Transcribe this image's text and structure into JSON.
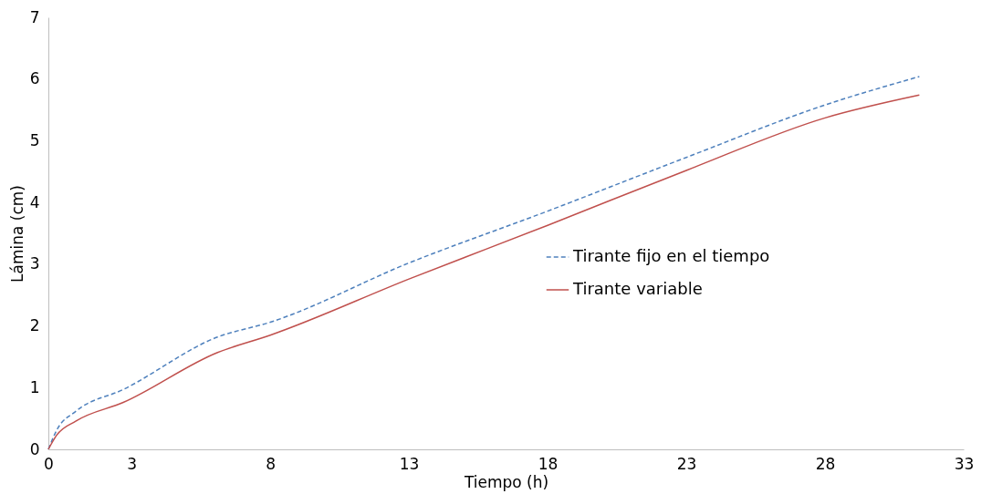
{
  "chart_data": {
    "type": "line",
    "xlabel": "Tiempo  (h)",
    "ylabel": "Lámina  (cm)",
    "xlim": [
      0,
      33
    ],
    "xticks": [
      0,
      3,
      8,
      13,
      18,
      23,
      28,
      33
    ],
    "ylim": [
      0,
      7
    ],
    "yticks": [
      0,
      1,
      2,
      3,
      4,
      5,
      6,
      7
    ],
    "grid": false,
    "legend": "right",
    "marker": "none",
    "series": [
      {
        "name": "Tirante fijo en el tiempo",
        "color": "#4f81bd",
        "line_style": "dashed",
        "x": [
          0,
          0.3,
          1,
          2.7,
          6.1,
          8,
          13,
          18,
          23,
          28,
          31.4
        ],
        "values": [
          0,
          0.31,
          0.62,
          0.97,
          1.82,
          2.06,
          3.02,
          3.86,
          4.73,
          5.58,
          6.04
        ]
      },
      {
        "name": "Tirante variable",
        "color": "#c0504d",
        "line_style": "solid",
        "x": [
          0,
          0.3,
          1,
          2.7,
          6.1,
          8,
          13,
          18,
          23,
          28,
          31.4
        ],
        "values": [
          0,
          0.23,
          0.46,
          0.76,
          1.57,
          1.85,
          2.76,
          3.63,
          4.52,
          5.37,
          5.74
        ]
      }
    ]
  }
}
